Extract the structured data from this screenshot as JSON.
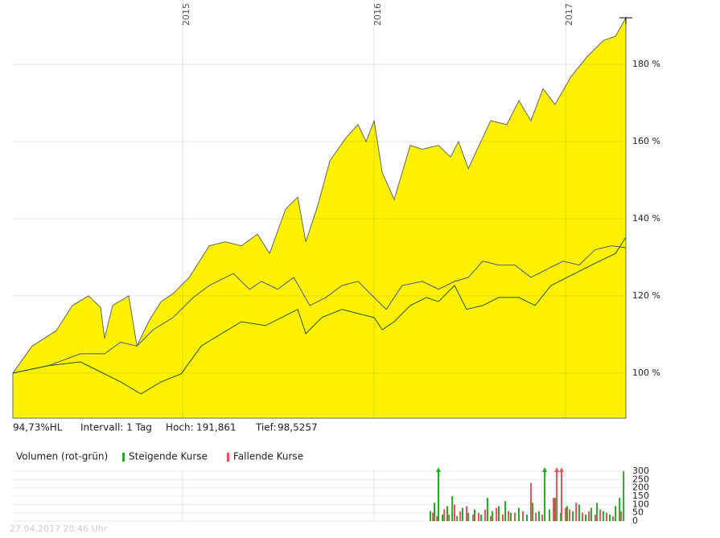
{
  "chart_data": [
    {
      "type": "area",
      "xlim": [
        2014.113,
        2017.315
      ],
      "xticks": [
        2015,
        2016,
        2017
      ],
      "ylim": [
        88.3,
        196.7
      ],
      "yticks": [
        {
          "value": 100,
          "label": "100 %"
        },
        {
          "value": 120,
          "label": "120 %"
        },
        {
          "value": 140,
          "label": "140 %"
        },
        {
          "value": 160,
          "label": "160 %"
        },
        {
          "value": 180,
          "label": "180 %"
        }
      ],
      "grid": true,
      "series": [
        {
          "type": "area",
          "color": "#fff200",
          "x": [
            2014.113,
            2014.214,
            2014.34,
            2014.424,
            2014.508,
            2014.571,
            2014.592,
            2014.634,
            2014.718,
            2014.761,
            2014.824,
            2014.887,
            2014.95,
            2015.034,
            2015.139,
            2015.223,
            2015.307,
            2015.391,
            2015.454,
            2015.538,
            2015.601,
            2015.643,
            2015.706,
            2015.769,
            2015.853,
            2015.916,
            2015.958,
            2016.0,
            2016.042,
            2016.105,
            2016.189,
            2016.252,
            2016.336,
            2016.399,
            2016.441,
            2016.492,
            2016.567,
            2016.609,
            2016.693,
            2016.756,
            2016.819,
            2016.882,
            2016.945,
            2017.029,
            2017.113,
            2017.197,
            2017.261,
            2017.315
          ],
          "values": [
            100,
            107,
            111,
            117.5,
            120,
            117,
            109,
            117.5,
            120,
            107,
            113.5,
            118.5,
            120.6,
            124.8,
            133,
            134,
            133,
            136,
            131,
            142.5,
            145.6,
            134,
            143.5,
            155,
            161,
            164.4,
            160,
            165.4,
            152,
            145,
            159,
            158,
            159,
            156,
            160,
            153,
            161,
            165.4,
            164.4,
            170.6,
            165.4,
            173.7,
            169.6,
            176.9,
            182,
            186.2,
            187.3,
            192.1
          ]
        },
        {
          "type": "line",
          "color": "#4a5a7a",
          "x": [
            2014.113,
            2014.298,
            2014.466,
            2014.592,
            2014.676,
            2014.761,
            2014.845,
            2014.95,
            2015.055,
            2015.139,
            2015.265,
            2015.349,
            2015.412,
            2015.496,
            2015.58,
            2015.664,
            2015.748,
            2015.832,
            2015.916,
            2016.0,
            2016.063,
            2016.147,
            2016.252,
            2016.336,
            2016.42,
            2016.492,
            2016.567,
            2016.651,
            2016.735,
            2016.819,
            2016.903,
            2016.987,
            2017.071,
            2017.155,
            2017.239,
            2017.315
          ],
          "values": [
            100,
            101.9,
            105,
            105,
            108,
            107,
            111.2,
            114.4,
            119.6,
            122.7,
            125.8,
            121.7,
            123.75,
            121.7,
            124.8,
            117.5,
            119.6,
            122.7,
            123.75,
            119.6,
            116.5,
            122.7,
            123.75,
            121.7,
            123.75,
            124.8,
            129,
            128,
            128,
            124.8,
            126.9,
            129,
            128,
            132,
            133,
            132.5
          ]
        },
        {
          "type": "line",
          "color": "#1e5a1e",
          "x": [
            2014.113,
            2014.298,
            2014.466,
            2014.55,
            2014.676,
            2014.782,
            2014.887,
            2014.992,
            2015.097,
            2015.202,
            2015.307,
            2015.433,
            2015.517,
            2015.601,
            2015.643,
            2015.727,
            2015.832,
            2015.916,
            2016.0,
            2016.042,
            2016.105,
            2016.189,
            2016.273,
            2016.336,
            2016.42,
            2016.483,
            2016.567,
            2016.651,
            2016.756,
            2016.84,
            2016.924,
            2017.008,
            2017.092,
            2017.176,
            2017.261,
            2017.315
          ],
          "values": [
            100,
            101.9,
            102.9,
            100.8,
            97.7,
            94.6,
            97.7,
            99.8,
            107,
            110.2,
            113.3,
            112.3,
            114.4,
            116.5,
            110.2,
            114.4,
            116.5,
            115.4,
            114.4,
            111.2,
            113.3,
            117.5,
            119.6,
            118.5,
            122.7,
            116.5,
            117.5,
            119.6,
            119.6,
            117.5,
            122.7,
            124.8,
            126.9,
            129,
            131,
            135.2
          ]
        }
      ]
    },
    {
      "type": "bar",
      "legend_title": "Volumen (rot-grün)",
      "xlim": [
        2014.113,
        2017.315
      ],
      "ylim": [
        0,
        300
      ],
      "yticks": [
        0,
        50,
        100,
        150,
        200,
        250,
        300
      ],
      "grid": true,
      "series": [
        {
          "name": "Steigende Kurse",
          "color": "#22aa22",
          "x": [
            2016.294,
            2016.315,
            2016.336,
            2016.357,
            2016.382,
            2016.408,
            2016.433,
            2016.462,
            2016.492,
            2016.525,
            2016.559,
            2016.592,
            2016.618,
            2016.651,
            2016.685,
            2016.714,
            2016.756,
            2016.798,
            2016.828,
            2016.861,
            2016.891,
            2016.916,
            2016.945,
            2016.975,
            2017.008,
            2017.038,
            2017.071,
            2017.105,
            2017.134,
            2017.164,
            2017.197,
            2017.231,
            2017.261,
            2017.282,
            2017.303
          ],
          "values": [
            60,
            110,
            320,
            40,
            90,
            150,
            30,
            80,
            50,
            70,
            40,
            140,
            60,
            90,
            120,
            50,
            80,
            40,
            110,
            60,
            320,
            70,
            140,
            50,
            90,
            60,
            100,
            40,
            80,
            110,
            60,
            40,
            90,
            140,
            300
          ]
        },
        {
          "name": "Fallende Kurse",
          "color": "#e8505a",
          "x": [
            2016.307,
            2016.328,
            2016.366,
            2016.391,
            2016.42,
            2016.45,
            2016.483,
            2016.517,
            2016.546,
            2016.58,
            2016.609,
            2016.639,
            2016.672,
            2016.702,
            2016.735,
            2016.777,
            2016.819,
            2016.845,
            2016.878,
            2016.937,
            2016.954,
            2016.979,
            2017.0,
            2017.021,
            2017.055,
            2017.088,
            2017.122,
            2017.155,
            2017.181,
            2017.214,
            2017.248,
            2017.29
          ],
          "values": [
            50,
            30,
            70,
            40,
            100,
            60,
            90,
            40,
            50,
            70,
            30,
            80,
            40,
            60,
            50,
            60,
            230,
            50,
            40,
            140,
            320,
            320,
            80,
            70,
            110,
            50,
            60,
            40,
            70,
            50,
            30,
            60
          ]
        }
      ]
    }
  ],
  "info": {
    "change": "94,73%HL",
    "interval": "Intervall: 1 Tag",
    "high_label": "Hoch:",
    "high": "191,861",
    "low_label": "Tief:",
    "low": "98,5257"
  },
  "timestamp": "27.04.2017 20:46 Uhr"
}
